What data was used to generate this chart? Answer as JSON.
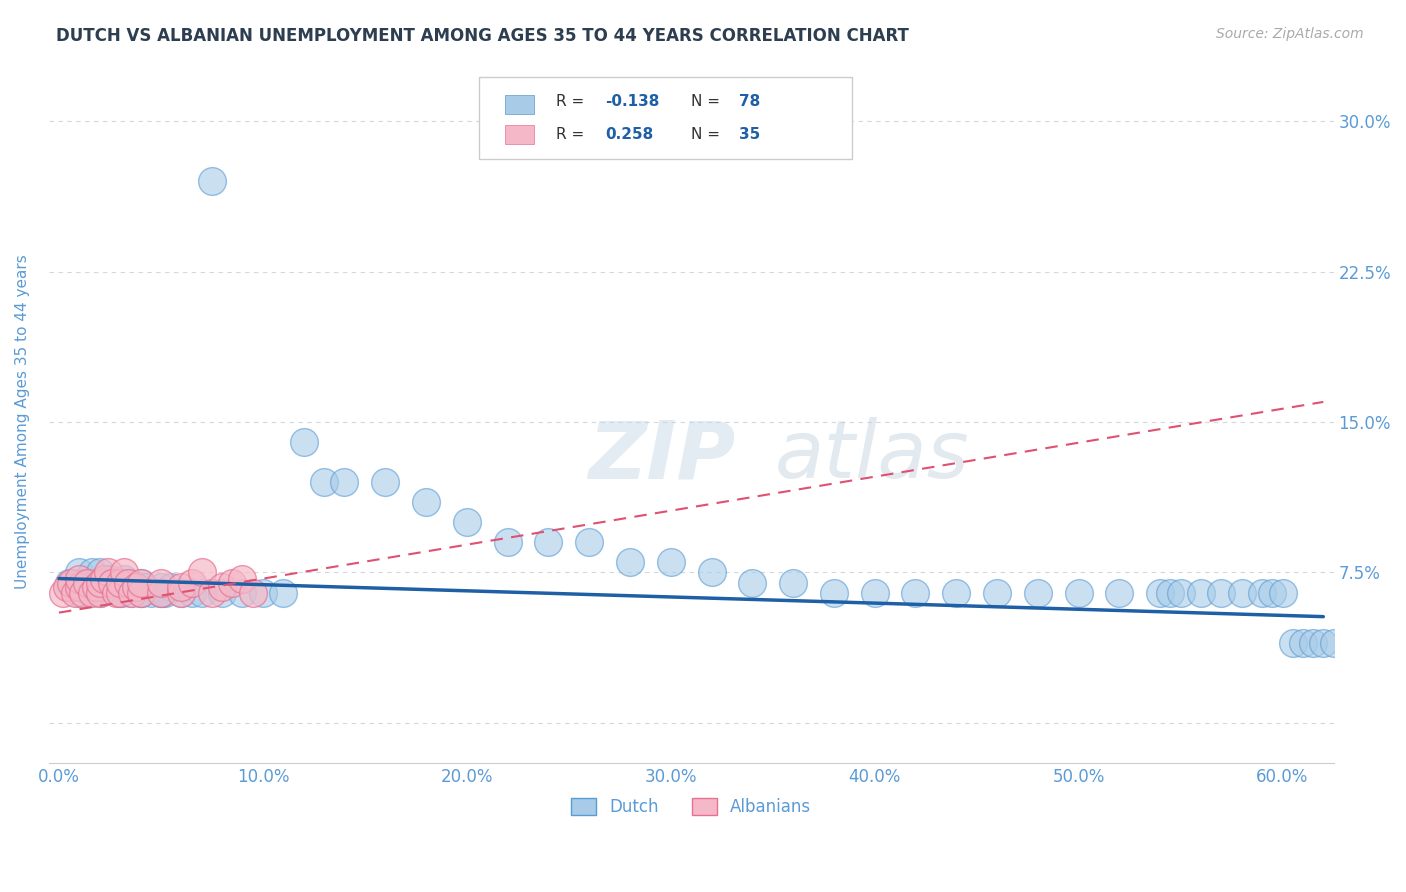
{
  "title": "DUTCH VS ALBANIAN UNEMPLOYMENT AMONG AGES 35 TO 44 YEARS CORRELATION CHART",
  "source": "Source: ZipAtlas.com",
  "ylabel": "Unemployment Among Ages 35 to 44 years",
  "xlabel": "",
  "xlim": [
    -0.005,
    0.625
  ],
  "ylim": [
    -0.02,
    0.32
  ],
  "xticks": [
    0.0,
    0.1,
    0.2,
    0.3,
    0.4,
    0.5,
    0.6
  ],
  "xticklabels": [
    "0.0%",
    "10.0%",
    "20.0%",
    "30.0%",
    "40.0%",
    "50.0%",
    "60.0%"
  ],
  "yticks": [
    0.0,
    0.075,
    0.15,
    0.225,
    0.3
  ],
  "yticklabels": [
    "",
    "7.5%",
    "15.0%",
    "22.5%",
    "30.0%"
  ],
  "dutch_R": -0.138,
  "dutch_N": 78,
  "albanian_R": 0.258,
  "albanian_N": 35,
  "dutch_color": "#a8cce8",
  "albanian_color": "#f4b8c8",
  "dutch_edge_color": "#5b9bd5",
  "albanian_edge_color": "#e87090",
  "dutch_line_color": "#1f5fa6",
  "albanian_line_color": "#e05070",
  "grid_color": "#d0d8e0",
  "background_color": "#ffffff",
  "title_color": "#2c3e50",
  "axis_label_color": "#5b9bd5",
  "dutch_x": [
    0.005,
    0.01,
    0.01,
    0.01,
    0.012,
    0.015,
    0.015,
    0.016,
    0.018,
    0.02,
    0.02,
    0.02,
    0.022,
    0.025,
    0.025,
    0.028,
    0.03,
    0.03,
    0.032,
    0.032,
    0.035,
    0.035,
    0.038,
    0.04,
    0.04,
    0.042,
    0.045,
    0.05,
    0.05,
    0.052,
    0.055,
    0.06,
    0.065,
    0.07,
    0.075,
    0.08,
    0.09,
    0.1,
    0.11,
    0.12,
    0.13,
    0.14,
    0.16,
    0.18,
    0.2,
    0.22,
    0.24,
    0.26,
    0.28,
    0.3,
    0.32,
    0.34,
    0.36,
    0.38,
    0.4,
    0.42,
    0.44,
    0.46,
    0.48,
    0.5,
    0.52,
    0.54,
    0.545,
    0.55,
    0.56,
    0.57,
    0.58,
    0.59,
    0.595,
    0.6,
    0.605,
    0.61,
    0.615,
    0.62,
    0.625,
    0.03,
    0.04,
    0.05
  ],
  "dutch_y": [
    0.07,
    0.065,
    0.07,
    0.075,
    0.07,
    0.065,
    0.07,
    0.075,
    0.068,
    0.065,
    0.07,
    0.075,
    0.07,
    0.068,
    0.072,
    0.07,
    0.065,
    0.07,
    0.068,
    0.072,
    0.065,
    0.07,
    0.068,
    0.065,
    0.07,
    0.068,
    0.065,
    0.065,
    0.068,
    0.065,
    0.068,
    0.065,
    0.065,
    0.065,
    0.27,
    0.065,
    0.065,
    0.065,
    0.065,
    0.14,
    0.12,
    0.12,
    0.12,
    0.11,
    0.1,
    0.09,
    0.09,
    0.09,
    0.08,
    0.08,
    0.075,
    0.07,
    0.07,
    0.065,
    0.065,
    0.065,
    0.065,
    0.065,
    0.065,
    0.065,
    0.065,
    0.065,
    0.065,
    0.065,
    0.065,
    0.065,
    0.065,
    0.065,
    0.065,
    0.065,
    0.04,
    0.04,
    0.04,
    0.04,
    0.04,
    0.065,
    0.065,
    0.065
  ],
  "albanian_x": [
    0.002,
    0.004,
    0.006,
    0.008,
    0.01,
    0.01,
    0.012,
    0.014,
    0.016,
    0.018,
    0.02,
    0.02,
    0.022,
    0.024,
    0.026,
    0.028,
    0.03,
    0.03,
    0.032,
    0.034,
    0.036,
    0.038,
    0.04,
    0.04,
    0.05,
    0.05,
    0.06,
    0.06,
    0.065,
    0.07,
    0.075,
    0.08,
    0.085,
    0.09,
    0.095
  ],
  "albanian_y": [
    0.065,
    0.068,
    0.07,
    0.065,
    0.068,
    0.072,
    0.065,
    0.07,
    0.065,
    0.068,
    0.065,
    0.07,
    0.072,
    0.075,
    0.07,
    0.065,
    0.065,
    0.07,
    0.075,
    0.07,
    0.065,
    0.068,
    0.065,
    0.07,
    0.065,
    0.07,
    0.065,
    0.068,
    0.07,
    0.075,
    0.065,
    0.068,
    0.07,
    0.072,
    0.065
  ],
  "dutch_line_x0": 0.0,
  "dutch_line_x1": 0.62,
  "dutch_line_y0": 0.072,
  "dutch_line_y1": 0.053,
  "albanian_line_x0": 0.0,
  "albanian_line_x1": 0.62,
  "albanian_line_y0": 0.055,
  "albanian_line_y1": 0.16
}
